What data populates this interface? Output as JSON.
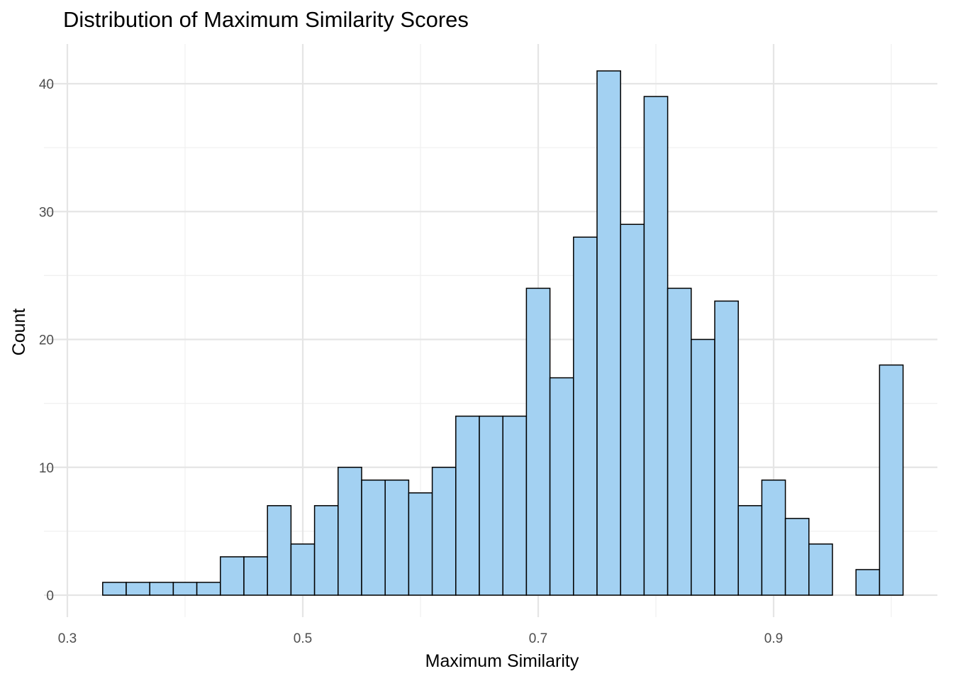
{
  "chart_data": {
    "type": "bar",
    "title": "Distribution of Maximum Similarity Scores",
    "xlabel": "Maximum Similarity",
    "ylabel": "Count",
    "xlim": [
      0.3,
      1.02
    ],
    "ylim": [
      -1.6,
      43
    ],
    "x_ticks": [
      "0.3",
      "0.5",
      "0.7",
      "0.9"
    ],
    "y_ticks": [
      "0",
      "10",
      "20",
      "30",
      "40"
    ],
    "grid": true,
    "bin_width": 0.02,
    "bins": [
      {
        "x0": 0.33,
        "x1": 0.35,
        "count": 1
      },
      {
        "x0": 0.35,
        "x1": 0.37,
        "count": 1
      },
      {
        "x0": 0.37,
        "x1": 0.39,
        "count": 1
      },
      {
        "x0": 0.39,
        "x1": 0.41,
        "count": 1
      },
      {
        "x0": 0.41,
        "x1": 0.43,
        "count": 1
      },
      {
        "x0": 0.43,
        "x1": 0.45,
        "count": 3
      },
      {
        "x0": 0.45,
        "x1": 0.47,
        "count": 3
      },
      {
        "x0": 0.47,
        "x1": 0.49,
        "count": 7
      },
      {
        "x0": 0.49,
        "x1": 0.51,
        "count": 4
      },
      {
        "x0": 0.51,
        "x1": 0.53,
        "count": 7
      },
      {
        "x0": 0.53,
        "x1": 0.55,
        "count": 10
      },
      {
        "x0": 0.55,
        "x1": 0.57,
        "count": 9
      },
      {
        "x0": 0.57,
        "x1": 0.59,
        "count": 9
      },
      {
        "x0": 0.59,
        "x1": 0.61,
        "count": 8
      },
      {
        "x0": 0.61,
        "x1": 0.63,
        "count": 10
      },
      {
        "x0": 0.63,
        "x1": 0.65,
        "count": 14
      },
      {
        "x0": 0.65,
        "x1": 0.67,
        "count": 14
      },
      {
        "x0": 0.67,
        "x1": 0.69,
        "count": 14
      },
      {
        "x0": 0.69,
        "x1": 0.71,
        "count": 24
      },
      {
        "x0": 0.71,
        "x1": 0.73,
        "count": 17
      },
      {
        "x0": 0.73,
        "x1": 0.75,
        "count": 28
      },
      {
        "x0": 0.75,
        "x1": 0.77,
        "count": 41
      },
      {
        "x0": 0.77,
        "x1": 0.79,
        "count": 29
      },
      {
        "x0": 0.79,
        "x1": 0.81,
        "count": 39
      },
      {
        "x0": 0.81,
        "x1": 0.83,
        "count": 24
      },
      {
        "x0": 0.83,
        "x1": 0.85,
        "count": 20
      },
      {
        "x0": 0.85,
        "x1": 0.87,
        "count": 23
      },
      {
        "x0": 0.87,
        "x1": 0.89,
        "count": 7
      },
      {
        "x0": 0.89,
        "x1": 0.91,
        "count": 9
      },
      {
        "x0": 0.91,
        "x1": 0.93,
        "count": 6
      },
      {
        "x0": 0.93,
        "x1": 0.95,
        "count": 4
      },
      {
        "x0": 0.95,
        "x1": 0.97,
        "count": 0
      },
      {
        "x0": 0.97,
        "x1": 0.99,
        "count": 2
      },
      {
        "x0": 0.99,
        "x1": 1.01,
        "count": 18
      }
    ],
    "colors": {
      "bar_fill": "#a3d1f2",
      "bar_stroke": "#000000",
      "grid": "#e5e5e5",
      "background": "#ffffff"
    }
  }
}
